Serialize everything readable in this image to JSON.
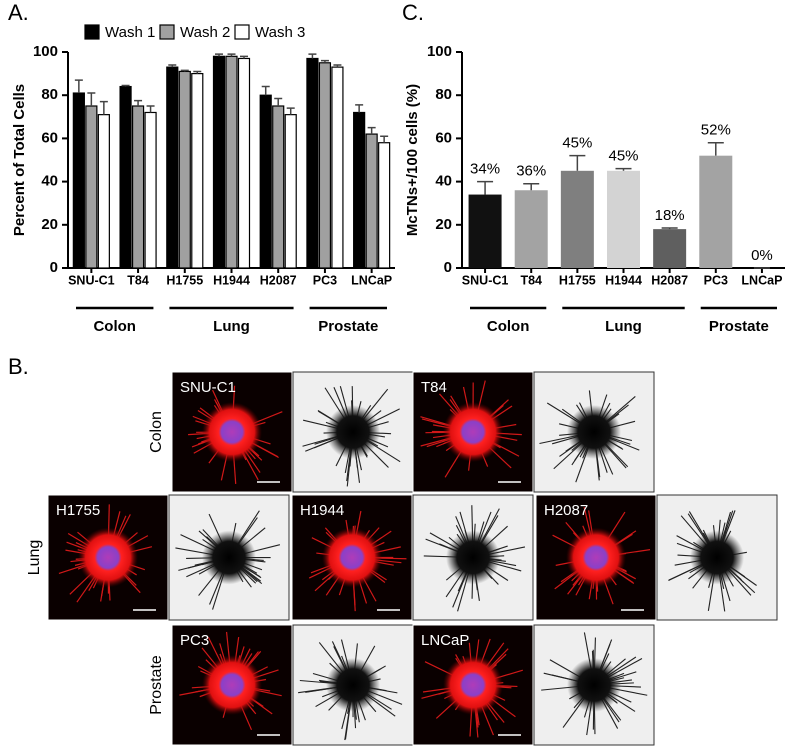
{
  "chart_data": [
    {
      "type": "bar",
      "panel_label": "A.",
      "y_label": "Percent of Total Cells",
      "categories": [
        "SNU-C1",
        "T84",
        "H1755",
        "H1944",
        "H2087",
        "PC3",
        "LNCaP"
      ],
      "series": [
        {
          "name": "Wash 1",
          "color": "#000000",
          "values": [
            81,
            84,
            93,
            98,
            80,
            97,
            72
          ],
          "errors": [
            6,
            0.5,
            1,
            1,
            4,
            2,
            3.5
          ]
        },
        {
          "name": "Wash 2",
          "color": "#a0a0a0",
          "values": [
            75,
            75,
            91,
            98,
            75,
            95,
            62
          ],
          "errors": [
            6,
            2.5,
            0.5,
            1,
            3.5,
            1,
            3
          ]
        },
        {
          "name": "Wash 3",
          "color": "#ffffff",
          "values": [
            71,
            72,
            90,
            97,
            71,
            93,
            58
          ],
          "errors": [
            6,
            3,
            1,
            1,
            3,
            1,
            3
          ]
        }
      ],
      "groups": [
        "Colon",
        "Lung",
        "Prostate"
      ],
      "ylim": [
        0,
        100
      ],
      "yticks": [
        0,
        20,
        40,
        60,
        80,
        100
      ],
      "legend": "top"
    },
    {
      "type": "bar",
      "panel_label": "C.",
      "y_label": "McTNs+/100 cells (%)",
      "categories": [
        "SNU-C1",
        "T84",
        "H1755",
        "H1944",
        "H2087",
        "PC3",
        "LNCaP"
      ],
      "values": [
        34,
        36,
        45,
        45,
        18,
        52,
        0
      ],
      "value_labels": [
        "34%",
        "36%",
        "45%",
        "45%",
        "18%",
        "52%",
        "0%"
      ],
      "errors": [
        6,
        3,
        7,
        1,
        0.5,
        6,
        0
      ],
      "colors": [
        "#111111",
        "#a3a3a3",
        "#7f7f7f",
        "#d3d3d3",
        "#5f5f5f",
        "#a3a3a3",
        "#444444"
      ],
      "groups": [
        "Colon",
        "Lung",
        "Prostate"
      ],
      "ylim": [
        0,
        100
      ],
      "yticks": [
        0,
        20,
        40,
        60,
        80,
        100
      ]
    }
  ],
  "panel_b": {
    "label": "B.",
    "rows": [
      {
        "group": "Colon",
        "cells": [
          "SNU-C1",
          "T84"
        ]
      },
      {
        "group": "Lung",
        "cells": [
          "H1755",
          "H1944",
          "H2087"
        ]
      },
      {
        "group": "Prostate",
        "cells": [
          "PC3",
          "LNCaP"
        ]
      }
    ]
  }
}
